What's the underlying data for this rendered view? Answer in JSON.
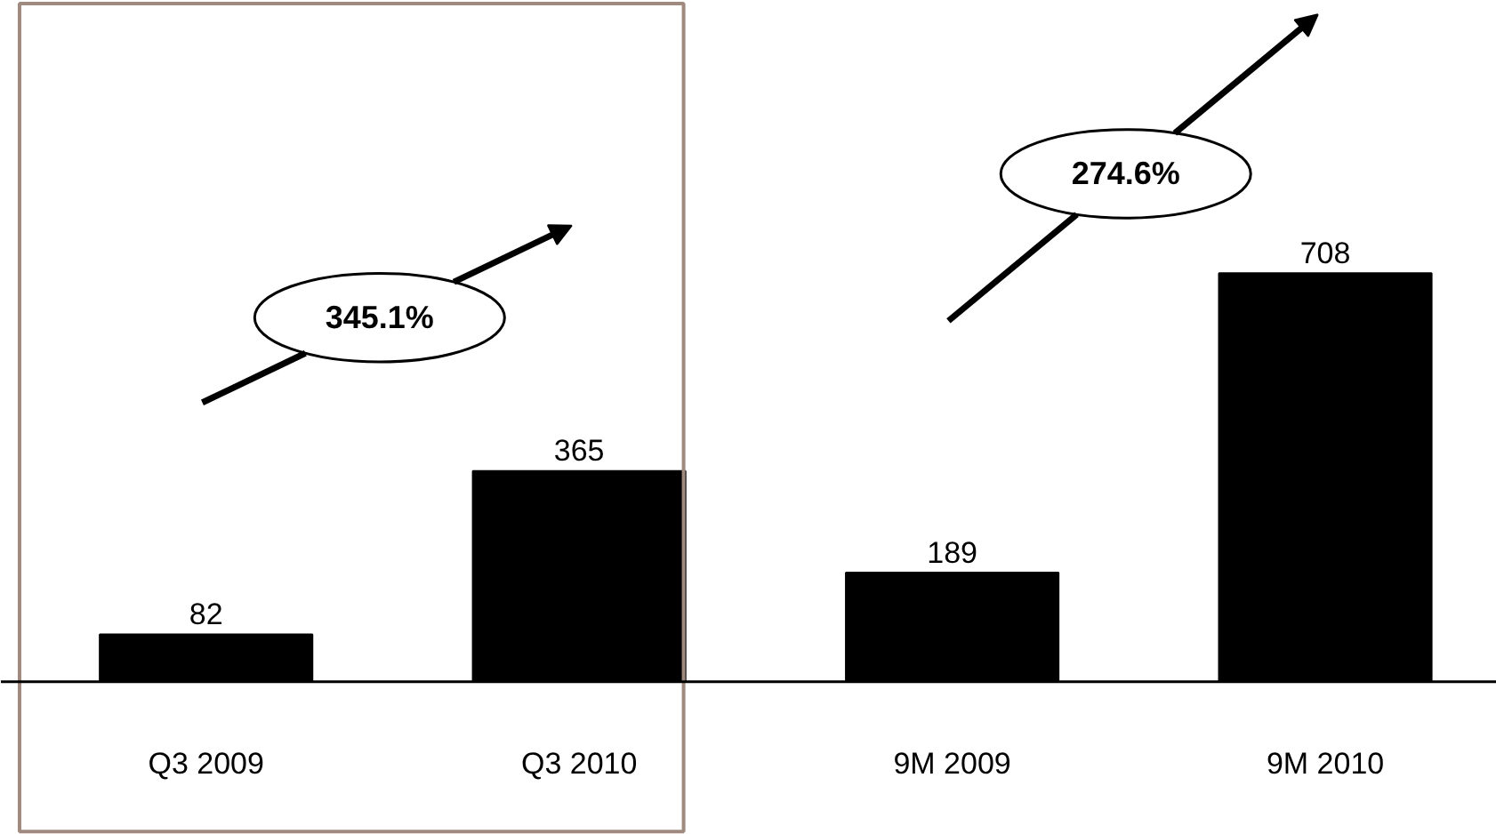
{
  "chart_data": {
    "type": "bar",
    "categories": [
      "Q3 2009",
      "Q3 2010",
      "9M 2009",
      "9M 2010"
    ],
    "values": [
      82,
      365,
      189,
      708
    ],
    "color": "#000000",
    "data_labels": true,
    "ylim": [
      0,
      1180
    ],
    "tick_labels": "x",
    "grid": false,
    "annotations": [
      "345.1%",
      "274.6%"
    ]
  }
}
